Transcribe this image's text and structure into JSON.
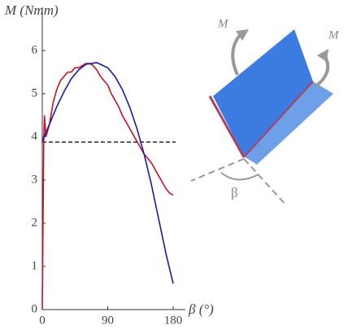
{
  "chart_data": {
    "type": "line",
    "y_label": "M (Nmm)",
    "x_label": "β (°)",
    "xlim": [
      0,
      180
    ],
    "ylim": [
      0,
      7
    ],
    "xticks": [
      0,
      90,
      180
    ],
    "yticks": [
      0,
      1,
      2,
      3,
      4,
      5,
      6
    ],
    "series": [
      {
        "color": "#cc1122",
        "x": [
          0,
          2,
          3,
          5,
          10,
          15,
          20,
          25,
          30,
          35,
          40,
          45,
          50,
          55,
          60,
          65,
          70,
          75,
          80,
          85,
          90,
          95,
          100,
          105,
          110,
          115,
          120,
          125,
          130,
          135,
          140,
          145,
          150,
          155,
          160,
          165,
          170,
          175,
          180
        ],
        "values": [
          0,
          3.9,
          4.5,
          4.0,
          4.3,
          4.8,
          5.1,
          5.3,
          5.4,
          5.5,
          5.5,
          5.6,
          5.6,
          5.65,
          5.7,
          5.7,
          5.65,
          5.55,
          5.4,
          5.3,
          5.2,
          5.0,
          4.85,
          4.7,
          4.5,
          4.35,
          4.2,
          4.05,
          3.9,
          3.75,
          3.6,
          3.5,
          3.4,
          3.25,
          3.1,
          2.95,
          2.8,
          2.7,
          2.65
        ]
      },
      {
        "color": "#1a1aaa",
        "x": [
          0,
          10,
          20,
          30,
          40,
          50,
          60,
          75,
          90,
          100,
          110,
          120,
          130,
          140,
          150,
          160,
          170,
          180
        ],
        "values": [
          3.9,
          4.3,
          4.7,
          5.05,
          5.35,
          5.55,
          5.68,
          5.72,
          5.6,
          5.4,
          5.1,
          4.7,
          4.2,
          3.6,
          2.9,
          2.1,
          1.3,
          0.6
        ]
      }
    ],
    "reference_line": 3.88,
    "annotations": [
      "M",
      "M",
      "β"
    ]
  }
}
